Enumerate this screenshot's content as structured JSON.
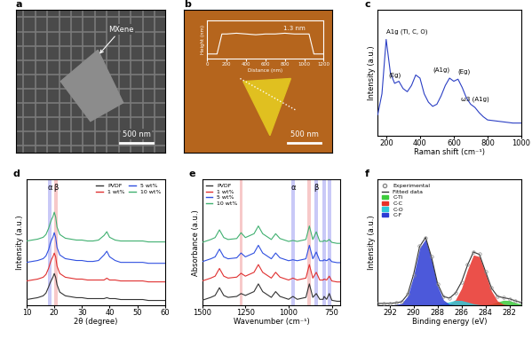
{
  "chart_data": [
    {
      "panel": "a",
      "type": "image",
      "texts": [
        "MXene",
        "500 nm"
      ]
    },
    {
      "panel": "b",
      "type": "image",
      "texts": [
        "500 nm"
      ],
      "inset": {
        "type": "line",
        "x_label": "Distance (nm)",
        "y_label": "Height (nm)",
        "annotation": "1.3 nm",
        "x": [
          0,
          100,
          150,
          200,
          300,
          400,
          500,
          600,
          700,
          800,
          900,
          1000,
          1050,
          1100,
          1200
        ],
        "values": [
          0,
          0,
          1.3,
          1.3,
          1.35,
          1.3,
          1.25,
          1.3,
          1.3,
          1.35,
          1.3,
          1.3,
          1.3,
          0,
          0
        ],
        "xlim": [
          0,
          1200
        ],
        "xticks": [
          0,
          200,
          400,
          600,
          800,
          1000,
          1200
        ],
        "ylim": [
          -0.3,
          2.2
        ],
        "tick_labels": "x",
        "color": "#ffffff"
      }
    },
    {
      "panel": "c",
      "type": "line",
      "x_label": "Raman shift (cm⁻¹)",
      "y_label": "Intensity (a.u.)",
      "x": [
        150,
        175,
        200,
        225,
        250,
        275,
        300,
        325,
        350,
        375,
        400,
        425,
        450,
        475,
        500,
        525,
        550,
        575,
        600,
        625,
        650,
        675,
        700,
        725,
        750,
        775,
        800,
        850,
        900,
        950,
        1000
      ],
      "series": [
        {
          "name": "Raman",
          "color": "#2b3fc4",
          "values": [
            20,
            40,
            92,
            60,
            50,
            52,
            45,
            42,
            48,
            58,
            55,
            40,
            32,
            28,
            30,
            38,
            48,
            55,
            52,
            54,
            46,
            36,
            30,
            27,
            22,
            18,
            15,
            14,
            13,
            12,
            12
          ]
        }
      ],
      "annotations": [
        {
          "text": "A1g (Ti, C, O)",
          "x": 200
        },
        {
          "text": "(Eg)",
          "x": 250
        },
        {
          "text": "(A1g)",
          "x": 575
        },
        {
          "text": "(Eg)",
          "x": 625
        },
        {
          "text": "ω3 (A1g)",
          "x": 725
        }
      ],
      "xlim": [
        150,
        1000
      ],
      "xticks": [
        200,
        400,
        600,
        800,
        1000
      ],
      "ylim": [
        0,
        120
      ],
      "tick_labels": "x"
    },
    {
      "panel": "d",
      "type": "line",
      "x_label": "2θ (degree)",
      "y_label": "Intensity (a.u.)",
      "legend": "upper right",
      "x": [
        10,
        12,
        14,
        16,
        17,
        18,
        18.5,
        19,
        19.5,
        20,
        20.5,
        21,
        22,
        24,
        26,
        28,
        30,
        32,
        34,
        36,
        38,
        39,
        40,
        42,
        44,
        46,
        48,
        50,
        52,
        54,
        56,
        58,
        60
      ],
      "series": [
        {
          "name": "PVDF",
          "color": "#333333",
          "values": [
            6,
            7,
            8,
            10,
            13,
            20,
            24,
            27,
            30,
            34,
            30,
            22,
            14,
            10,
            9,
            8,
            8,
            7,
            7,
            7,
            7,
            8,
            7,
            7,
            6,
            6,
            6,
            6,
            6,
            5,
            5,
            5,
            5
          ]
        },
        {
          "name": "1 wt%",
          "color": "#e03030",
          "values": [
            26,
            27,
            28,
            30,
            33,
            40,
            45,
            49,
            52,
            56,
            52,
            42,
            34,
            30,
            29,
            28,
            28,
            27,
            27,
            27,
            27,
            29,
            27,
            27,
            26,
            26,
            26,
            26,
            26,
            25,
            25,
            25,
            25
          ]
        },
        {
          "name": "5 wt%",
          "color": "#3050e0",
          "values": [
            46,
            47,
            48,
            50,
            53,
            60,
            66,
            70,
            73,
            78,
            73,
            62,
            54,
            50,
            49,
            48,
            48,
            47,
            47,
            48,
            54,
            58,
            52,
            48,
            46,
            46,
            46,
            46,
            46,
            45,
            45,
            45,
            45
          ]
        },
        {
          "name": "10 wt%",
          "color": "#40b070",
          "values": [
            69,
            70,
            71,
            73,
            76,
            83,
            88,
            92,
            95,
            100,
            95,
            84,
            76,
            72,
            71,
            70,
            70,
            69,
            69,
            70,
            75,
            79,
            73,
            70,
            69,
            69,
            69,
            69,
            69,
            68,
            68,
            68,
            68
          ]
        }
      ],
      "bands": [
        {
          "x": 18.4,
          "color": "#8888ee"
        },
        {
          "x": 20.6,
          "color": "#ee8888"
        }
      ],
      "annotations": [
        {
          "text": "α",
          "x": 18.4
        },
        {
          "text": "β",
          "x": 20.6
        }
      ],
      "xlim": [
        10,
        60
      ],
      "xticks": [
        10,
        20,
        30,
        40,
        50,
        60
      ],
      "ylim": [
        0,
        135
      ],
      "tick_labels": "x"
    },
    {
      "panel": "e",
      "type": "line",
      "x_label": "Wavenumber (cm⁻¹)",
      "y_label": "Absorbance (a.u.)",
      "legend": "upper left",
      "x": [
        1500,
        1450,
        1425,
        1400,
        1375,
        1350,
        1300,
        1275,
        1250,
        1200,
        1175,
        1150,
        1100,
        1075,
        1050,
        1000,
        975,
        950,
        900,
        880,
        860,
        840,
        820,
        800,
        795,
        780,
        765,
        750,
        720,
        700
      ],
      "series": [
        {
          "name": "PVDF",
          "color": "#333333",
          "values": [
            5,
            8,
            10,
            18,
            10,
            8,
            9,
            12,
            10,
            14,
            22,
            14,
            8,
            14,
            9,
            6,
            9,
            6,
            8,
            22,
            8,
            12,
            6,
            6,
            9,
            6,
            12,
            5,
            4,
            4
          ]
        },
        {
          "name": "1 wt%",
          "color": "#e03030",
          "values": [
            25,
            28,
            30,
            38,
            30,
            28,
            29,
            33,
            30,
            34,
            42,
            34,
            28,
            34,
            29,
            26,
            28,
            26,
            28,
            42,
            28,
            34,
            26,
            26,
            27,
            26,
            30,
            25,
            24,
            24
          ]
        },
        {
          "name": "5 wt%",
          "color": "#3050e0",
          "values": [
            45,
            48,
            50,
            58,
            50,
            48,
            49,
            54,
            50,
            54,
            62,
            54,
            48,
            54,
            49,
            46,
            47,
            46,
            48,
            62,
            48,
            55,
            46,
            46,
            47,
            46,
            48,
            45,
            44,
            44
          ]
        },
        {
          "name": "10 wt%",
          "color": "#40b070",
          "values": [
            65,
            68,
            70,
            78,
            70,
            68,
            69,
            75,
            70,
            74,
            82,
            74,
            68,
            74,
            69,
            66,
            67,
            66,
            68,
            82,
            68,
            76,
            66,
            66,
            67,
            66,
            68,
            65,
            64,
            64
          ]
        }
      ],
      "bands": [
        {
          "x": 1275,
          "color": "#ee8888"
        },
        {
          "x": 975,
          "color": "#8888ee"
        },
        {
          "x": 880,
          "color": "#ee8888"
        },
        {
          "x": 840,
          "color": "#8888ee"
        },
        {
          "x": 795,
          "color": "#8888ee"
        },
        {
          "x": 765,
          "color": "#8888ee"
        }
      ],
      "annotations": [
        {
          "text": "α",
          "x": 975
        },
        {
          "text": "β",
          "x": 840
        }
      ],
      "xlim": [
        1500,
        700
      ],
      "xticks": [
        1500,
        1250,
        1000,
        750
      ],
      "ylim": [
        0,
        130
      ],
      "tick_labels": "x"
    },
    {
      "panel": "f",
      "type": "line",
      "x_label": "Binding energy (eV)",
      "y_label": "Intensity (a.u.)",
      "legend": "upper left",
      "x": [
        293,
        292.5,
        292,
        291.5,
        291,
        290.5,
        290,
        289.5,
        289,
        288.5,
        288,
        287.5,
        287,
        286.5,
        286,
        285.5,
        285,
        284.5,
        284,
        283.5,
        283,
        282.5,
        282,
        281.5,
        281
      ],
      "series": [
        {
          "name": "Experimental",
          "type": "scatter",
          "marker": "o",
          "color": "#888888",
          "values": [
            2.3,
            1.8,
            2.4,
            2.5,
            4.3,
            13.5,
            36,
            71,
            80,
            58,
            25,
            10.8,
            8,
            15,
            27,
            48.5,
            63,
            61,
            40,
            21,
            10,
            9.2,
            7.2,
            5.4,
            2.8
          ]
        },
        {
          "name": "Fitted data",
          "type": "line",
          "color": "#333333",
          "values": [
            2,
            2,
            2.1,
            2.7,
            4,
            12.8,
            37,
            70,
            81,
            57,
            25.6,
            10.2,
            8.4,
            14.5,
            27.6,
            47.7,
            63.6,
            60.5,
            40.4,
            20.4,
            10.6,
            8.8,
            7.6,
            5.1,
            3.1
          ]
        },
        {
          "name": "C-Ti",
          "type": "area",
          "color": "#3ccc3c",
          "values": [
            0,
            0,
            0,
            0,
            0,
            0,
            0,
            0,
            0,
            0,
            0,
            0,
            0,
            0,
            0,
            0,
            0,
            0,
            0.3,
            1.4,
            3.6,
            5.8,
            5.5,
            3.1,
            1.1
          ]
        },
        {
          "name": "C-C",
          "type": "area",
          "color": "#e8312a",
          "values": [
            0,
            0,
            0,
            0,
            0,
            0,
            0,
            0,
            0,
            0,
            0,
            0.2,
            1.4,
            6.5,
            20,
            42,
            60,
            58,
            38,
            17,
            5,
            1,
            0.1,
            0,
            0
          ]
        },
        {
          "name": "C-O",
          "type": "area",
          "color": "#31c9d9",
          "values": [
            0,
            0,
            0,
            0,
            0,
            0,
            0,
            0,
            0,
            0,
            0.6,
            2,
            4,
            5.8,
            5.6,
            3.7,
            1.6,
            0.5,
            0.1,
            0,
            0,
            0,
            0,
            0,
            0
          ]
        },
        {
          "name": "C-F",
          "type": "area",
          "color": "#2c3cd4",
          "values": [
            0,
            0,
            0.1,
            0.7,
            2.0,
            10.8,
            35,
            68,
            79,
            55,
            23,
            6,
            1,
            0.2,
            0,
            0,
            0,
            0,
            0,
            0,
            0,
            0,
            0,
            0,
            0
          ]
        }
      ],
      "xlim": [
        293,
        281
      ],
      "xticks": [
        292,
        290,
        288,
        286,
        284,
        282
      ],
      "ylim": [
        0,
        150
      ],
      "tick_labels": "x"
    }
  ]
}
